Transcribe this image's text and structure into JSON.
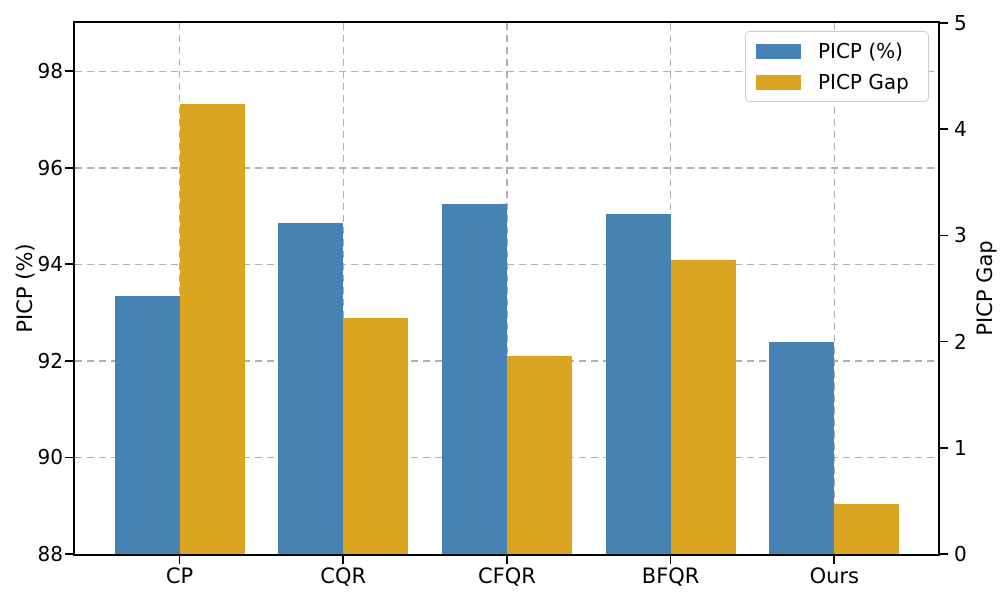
{
  "chart_data": {
    "type": "bar",
    "categories": [
      "CP",
      "CQR",
      "CFQR",
      "BFQR",
      "Ours"
    ],
    "series": [
      {
        "name": "PICP (%)",
        "axis": "left",
        "color": "#4682B4",
        "values": [
          93.35,
          94.85,
          95.25,
          95.05,
          92.4
        ]
      },
      {
        "name": "PICP Gap",
        "axis": "right",
        "color": "#DAA520",
        "values": [
          4.24,
          2.22,
          1.86,
          2.77,
          0.47
        ]
      }
    ],
    "left_axis": {
      "label": "PICP (%)",
      "min": 88,
      "max": 99,
      "ticks": [
        88,
        90,
        92,
        94,
        96,
        98
      ]
    },
    "right_axis": {
      "label": "PICP Gap",
      "min": 0,
      "max": 5,
      "ticks": [
        0,
        1,
        2,
        3,
        4,
        5
      ]
    },
    "legend": {
      "position": "upper right",
      "entries": [
        "PICP (%)",
        "PICP Gap"
      ]
    },
    "grid": {
      "visible": true,
      "style": "dashed",
      "color": "#b0b0b0"
    },
    "title": "",
    "xlabel": "",
    "background": "#ffffff"
  }
}
